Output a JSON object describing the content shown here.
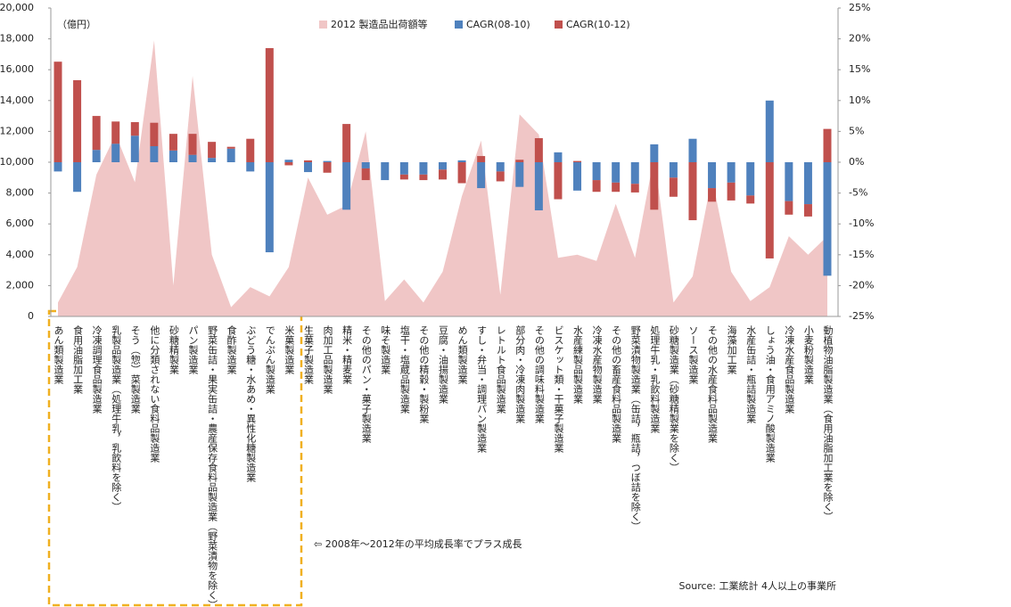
{
  "chart_data": {
    "type": "bar",
    "y_label": "（億円）",
    "annotation": "⇦ 2008年～2012年の平均成長率でプラス成長",
    "source": "Source: 工業統計 4人以上の事業所",
    "categories": [
      "あん類製造業",
      "食用油脂加工業",
      "冷凍調理食品製造業",
      "乳製品製造業（処理牛乳，乳飲料を除く）",
      "そう（惣）菜製造業",
      "他に分類されない食料品製造業",
      "砂糖精製業",
      "パン製造業",
      "野菜缶詰・果実缶詰・農産保存食料品製造業（野菜漬物を除く）",
      "食酢製造業",
      "ぶどう糖・水あめ・異性化糖製造業",
      "でんぷん製造業",
      "米菓製造業",
      "生菓子製造業",
      "肉加工品製造業",
      "精米・精麦業",
      "その他のパン・菓子製造業",
      "味そ製造業",
      "塩干・塩蔵品製造業",
      "その他の精穀・製粉業",
      "豆腐・油揚製造業",
      "めん類製造業",
      "すし・弁当・調理パン製造業",
      "レトルト食品製造業",
      "部分肉・冷凍肉製造業",
      "その他の調味料製造業",
      "ビスケット類・干菓子製造業",
      "水産練製品製造業",
      "冷凍水産物製造業",
      "その他の畜産食料品製造業",
      "野菜漬物製造業（缶詰，瓶詰，つぼ詰を除く）",
      "処理牛乳・乳飲料製造業",
      "砂糖製造業（砂糖精製業を除く）",
      "ソース製造業",
      "その他の水産食料品製造業",
      "海藻加工業",
      "水産缶詰・瓶詰製造業",
      "しょう油・食用アミノ酸製造業",
      "冷凍水産食品製造業",
      "小麦粉製造業",
      "動植物油脂製造業（食用油脂加工業を除く）"
    ],
    "series": [
      {
        "name": "2012 製造品出荷額等",
        "type": "area",
        "axis": "y",
        "color": "#f0c6c6",
        "values": [
          900,
          3200,
          9200,
          11800,
          8700,
          17900,
          2000,
          15600,
          4000,
          600,
          1900,
          1300,
          3200,
          9000,
          6600,
          7200,
          12000,
          1000,
          2400,
          900,
          2900,
          7800,
          11400,
          1400,
          13100,
          11800,
          3800,
          4000,
          3600,
          7300,
          3800,
          10400,
          900,
          2600,
          9000,
          2900,
          1000,
          1900,
          5200,
          4000,
          5200
        ]
      },
      {
        "name": "CAGR(08-10)",
        "type": "bar",
        "axis": "y2",
        "color": "#4f81bd",
        "values": [
          -1.5,
          -4.8,
          2.0,
          3.0,
          4.3,
          2.6,
          1.9,
          1.2,
          0.7,
          2.2,
          -1.5,
          -14.6,
          0.4,
          -1.6,
          0.2,
          -7.7,
          -1.0,
          -2.9,
          -2.0,
          -2.0,
          -1.2,
          0.3,
          -4.2,
          -1.5,
          -4.0,
          -7.8,
          1.6,
          -4.6,
          -2.9,
          -3.3,
          -3.5,
          2.9,
          -2.5,
          3.8,
          -4.2,
          -3.3,
          -5.4,
          10.0,
          -6.3,
          -6.8,
          -18.4
        ]
      },
      {
        "name": "CAGR(10-12)",
        "type": "bar",
        "axis": "y2",
        "color": "#c0504d",
        "values": [
          16.3,
          13.3,
          5.5,
          3.6,
          2.2,
          3.8,
          2.7,
          3.4,
          2.6,
          0.3,
          3.8,
          18.5,
          -0.5,
          0.3,
          -1.7,
          6.2,
          -1.9,
          0,
          -0.8,
          -0.9,
          -1.6,
          -3.4,
          1.0,
          -1.6,
          0.4,
          3.9,
          -6.0,
          0.2,
          -1.9,
          -1.5,
          -1.4,
          -7.7,
          -3.1,
          -9.4,
          -2.2,
          -2.9,
          -1.3,
          -15.6,
          -2.2,
          -2.0,
          5.4
        ]
      }
    ],
    "ylim": [
      0,
      20000
    ],
    "yticks": [
      0,
      {
        "value": 2000,
        "label": "2,000"
      },
      {
        "value": 4000,
        "label": "4,000"
      },
      {
        "value": 6000,
        "label": "6,000"
      },
      {
        "value": 8000,
        "label": "8,000"
      },
      {
        "value": 10000,
        "label": "10,000"
      },
      {
        "value": 12000,
        "label": "12,000"
      },
      {
        "value": 14000,
        "label": "14,000"
      },
      {
        "value": 16000,
        "label": "16,000"
      },
      {
        "value": 18000,
        "label": "18,000"
      },
      {
        "value": 20000,
        "label": "20,000"
      }
    ],
    "y2lim": [
      -25,
      25
    ],
    "y2ticks": [
      {
        "value": -25,
        "label": "-25%"
      },
      {
        "value": -20,
        "label": "-20%"
      },
      {
        "value": -15,
        "label": "-15%"
      },
      {
        "value": -10,
        "label": "-10%"
      },
      {
        "value": -5,
        "label": "-5%"
      },
      {
        "value": 0,
        "label": "0%"
      },
      {
        "value": 5,
        "label": "5%"
      },
      {
        "value": 10,
        "label": "10%"
      },
      {
        "value": 15,
        "label": "15%"
      },
      {
        "value": 20,
        "label": "20%"
      },
      {
        "value": 25,
        "label": "25%"
      }
    ]
  }
}
